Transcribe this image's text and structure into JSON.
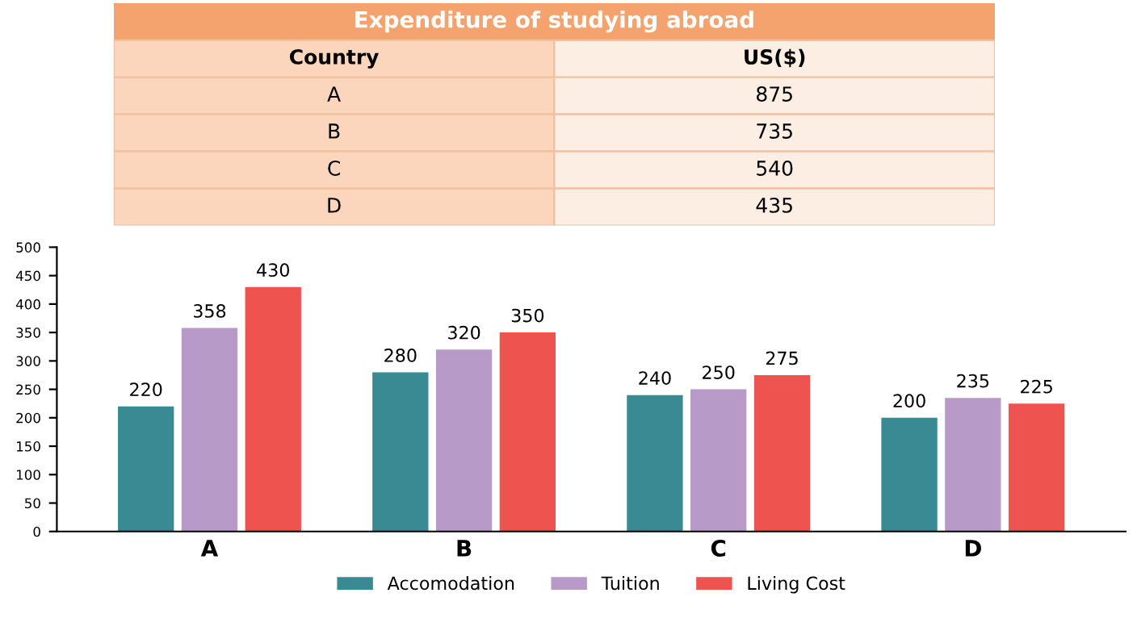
{
  "chart_data": [
    {
      "type": "other",
      "title": "Expenditure of studying abroad",
      "xlabel": "Country",
      "ylabel": "US($)",
      "categories": [
        "A",
        "B",
        "C",
        "D"
      ],
      "values": [
        875,
        735,
        540,
        435
      ],
      "data_labels": true
    },
    {
      "type": "bar",
      "categories": [
        "A",
        "B",
        "C",
        "D"
      ],
      "ylim": [
        0,
        500
      ],
      "yticks": [
        0,
        50,
        100,
        150,
        200,
        250,
        300,
        350,
        400,
        450,
        500
      ],
      "grid": false,
      "legend": "bottom",
      "data_labels": true,
      "series": [
        {
          "name": "Accomodation",
          "color": "#3a8a94",
          "values": [
            220,
            280,
            240,
            200
          ]
        },
        {
          "name": "Tuition",
          "color": "#b89ac8",
          "values": [
            358,
            320,
            250,
            235
          ]
        },
        {
          "name": "Living Cost",
          "color": "#ef5350",
          "values": [
            430,
            350,
            275,
            225
          ]
        }
      ]
    }
  ]
}
